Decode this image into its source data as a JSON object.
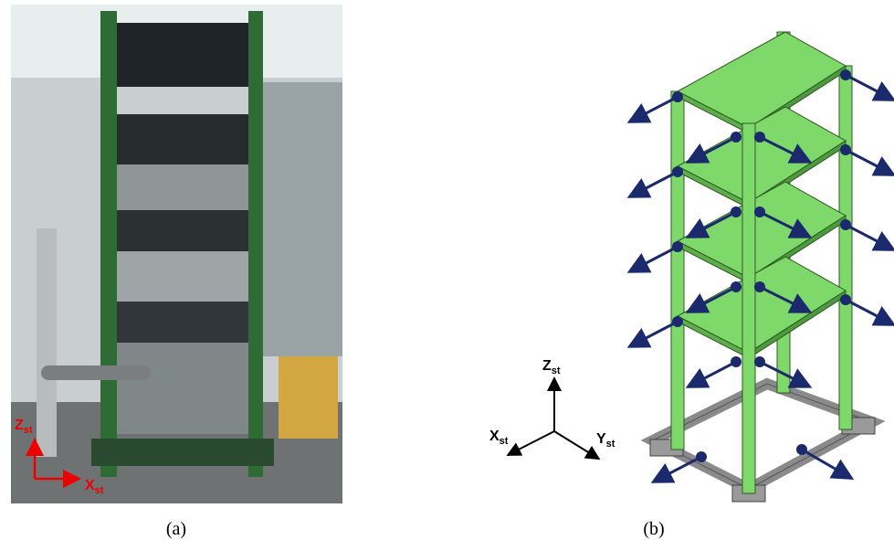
{
  "panels": [
    {
      "caption": "(a)",
      "axes": [
        {
          "main": "Z",
          "sub": "st"
        },
        {
          "main": "X",
          "sub": "st"
        }
      ]
    },
    {
      "caption": "(b)",
      "axes": [
        {
          "main": "Z",
          "sub": "st"
        },
        {
          "main": "X",
          "sub": "st"
        },
        {
          "main": "Y",
          "sub": "st"
        }
      ]
    }
  ]
}
